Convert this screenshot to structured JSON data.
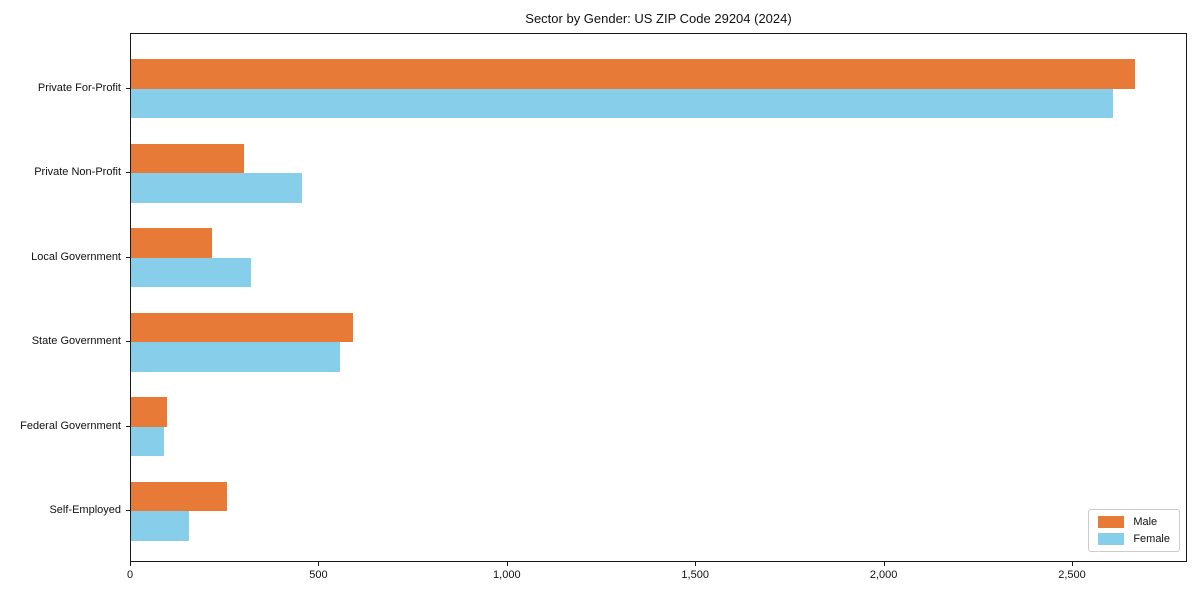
{
  "chart_data": {
    "type": "bar",
    "orientation": "horizontal",
    "title": "Sector by Gender: US ZIP Code 29204 (2024)",
    "xlabel": "",
    "ylabel": "",
    "categories": [
      "Private For-Profit",
      "Private Non-Profit",
      "Local Government",
      "State Government",
      "Federal Government",
      "Self-Employed"
    ],
    "series": [
      {
        "name": "Male",
        "color": "#e87a38",
        "values": [
          2665,
          300,
          215,
          590,
          95,
          255
        ]
      },
      {
        "name": "Female",
        "color": "#87ceeb",
        "values": [
          2605,
          455,
          318,
          555,
          87,
          155
        ]
      }
    ],
    "xlim": [
      0,
      2800
    ],
    "xticks": [
      0,
      500,
      1000,
      1500,
      2000,
      2500
    ],
    "xtick_labels": [
      "0",
      "500",
      "1,000",
      "1,500",
      "2,000",
      "2,500"
    ],
    "legend_position": "lower right",
    "grid": false,
    "background_color": "#ffffff",
    "spine_color": "#1a1a1a"
  }
}
